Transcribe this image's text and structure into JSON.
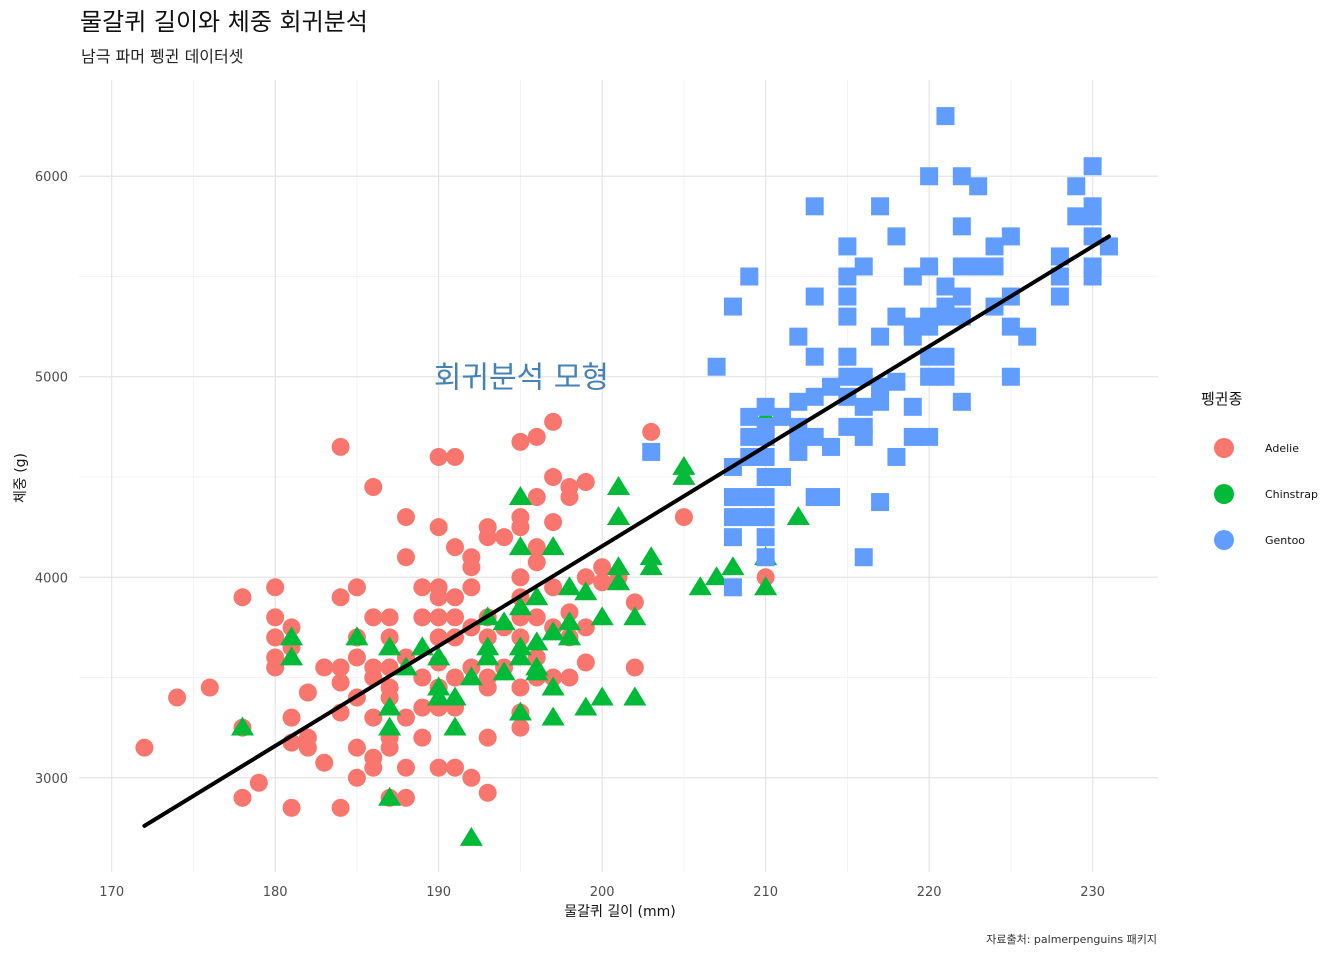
{
  "colors": {
    "Adelie": "#F8766D",
    "Chinstrap": "#00BA38",
    "Gentoo": "#619CFF",
    "regression_line": "#000000",
    "annotation": "#4682B4"
  },
  "chart_data": {
    "type": "scatter",
    "title": "물갈퀴 길이와 체중 회귀분석",
    "subtitle": "남극 파머 펭귄 데이터셋",
    "xlabel": "물갈퀴 길이 (mm)",
    "ylabel": "체중 (g)",
    "xlim": [
      168,
      234
    ],
    "ylim": [
      2530,
      6480
    ],
    "x_ticks": [
      170,
      180,
      190,
      200,
      210,
      220,
      230
    ],
    "y_ticks": [
      3000,
      4000,
      5000,
      6000
    ],
    "grid": true,
    "legend": {
      "title": "펭귄종",
      "position": "right",
      "entries": [
        "Adelie",
        "Chinstrap",
        "Gentoo"
      ]
    },
    "annotation": {
      "text": "회귀분석 모형",
      "x": 195,
      "y": 5000
    },
    "caption": "자료출처: palmerpenguins 패키지",
    "regression": {
      "label": "",
      "x": [
        172,
        231
      ],
      "y": [
        2760,
        5700
      ]
    },
    "series": [
      {
        "name": "Adelie",
        "shape": "circle",
        "points": [
          [
            172,
            3150
          ],
          [
            174,
            3400
          ],
          [
            176,
            3450
          ],
          [
            178,
            3900
          ],
          [
            178,
            3250
          ],
          [
            178,
            2900
          ],
          [
            179,
            2975
          ],
          [
            180,
            3950
          ],
          [
            180,
            3800
          ],
          [
            180,
            3700
          ],
          [
            180,
            3600
          ],
          [
            180,
            3550
          ],
          [
            181,
            3750
          ],
          [
            181,
            3650
          ],
          [
            181,
            3300
          ],
          [
            181,
            3175
          ],
          [
            181,
            2850
          ],
          [
            182,
            3425
          ],
          [
            182,
            3200
          ],
          [
            182,
            3150
          ],
          [
            183,
            3550
          ],
          [
            183,
            3075
          ],
          [
            184,
            4650
          ],
          [
            184,
            3900
          ],
          [
            184,
            3550
          ],
          [
            184,
            3475
          ],
          [
            184,
            3325
          ],
          [
            184,
            2850
          ],
          [
            185,
            3950
          ],
          [
            185,
            3700
          ],
          [
            185,
            3600
          ],
          [
            185,
            3400
          ],
          [
            185,
            3150
          ],
          [
            185,
            3000
          ],
          [
            186,
            4450
          ],
          [
            186,
            3800
          ],
          [
            186,
            3550
          ],
          [
            186,
            3500
          ],
          [
            186,
            3300
          ],
          [
            186,
            3100
          ],
          [
            186,
            3050
          ],
          [
            187,
            3800
          ],
          [
            187,
            3700
          ],
          [
            187,
            3550
          ],
          [
            187,
            3450
          ],
          [
            187,
            3400
          ],
          [
            187,
            3200
          ],
          [
            187,
            3150
          ],
          [
            187,
            2900
          ],
          [
            188,
            4300
          ],
          [
            188,
            4100
          ],
          [
            188,
            3600
          ],
          [
            188,
            3300
          ],
          [
            188,
            3050
          ],
          [
            188,
            2900
          ],
          [
            189,
            3950
          ],
          [
            189,
            3800
          ],
          [
            189,
            3500
          ],
          [
            189,
            3350
          ],
          [
            189,
            3200
          ],
          [
            190,
            4600
          ],
          [
            190,
            4250
          ],
          [
            190,
            3950
          ],
          [
            190,
            3900
          ],
          [
            190,
            3800
          ],
          [
            190,
            3700
          ],
          [
            190,
            3575
          ],
          [
            190,
            3450
          ],
          [
            190,
            3350
          ],
          [
            190,
            3050
          ],
          [
            191,
            4600
          ],
          [
            191,
            4150
          ],
          [
            191,
            3900
          ],
          [
            191,
            3800
          ],
          [
            191,
            3700
          ],
          [
            191,
            3500
          ],
          [
            191,
            3350
          ],
          [
            191,
            3050
          ],
          [
            192,
            4100
          ],
          [
            192,
            4050
          ],
          [
            192,
            3950
          ],
          [
            192,
            3750
          ],
          [
            192,
            3550
          ],
          [
            192,
            3000
          ],
          [
            193,
            4250
          ],
          [
            193,
            4200
          ],
          [
            193,
            3800
          ],
          [
            193,
            3700
          ],
          [
            193,
            3500
          ],
          [
            193,
            3450
          ],
          [
            193,
            3200
          ],
          [
            193,
            2925
          ],
          [
            194,
            4200
          ],
          [
            194,
            3750
          ],
          [
            194,
            3550
          ],
          [
            195,
            4675
          ],
          [
            195,
            4300
          ],
          [
            195,
            4250
          ],
          [
            195,
            4000
          ],
          [
            195,
            3900
          ],
          [
            195,
            3800
          ],
          [
            195,
            3700
          ],
          [
            195,
            3450
          ],
          [
            195,
            3325
          ],
          [
            195,
            3250
          ],
          [
            196,
            4700
          ],
          [
            196,
            4400
          ],
          [
            196,
            4150
          ],
          [
            196,
            4075
          ],
          [
            196,
            3800
          ],
          [
            196,
            3600
          ],
          [
            196,
            3500
          ],
          [
            197,
            4775
          ],
          [
            197,
            4500
          ],
          [
            197,
            4275
          ],
          [
            197,
            3950
          ],
          [
            197,
            3750
          ],
          [
            197,
            3500
          ],
          [
            198,
            4450
          ],
          [
            198,
            4400
          ],
          [
            198,
            3825
          ],
          [
            198,
            3700
          ],
          [
            198,
            3500
          ],
          [
            199,
            4475
          ],
          [
            199,
            4000
          ],
          [
            199,
            3750
          ],
          [
            199,
            3575
          ],
          [
            200,
            4050
          ],
          [
            200,
            3975
          ],
          [
            201,
            4000
          ],
          [
            202,
            3875
          ],
          [
            202,
            3550
          ],
          [
            203,
            4725
          ],
          [
            205,
            4300
          ],
          [
            210,
            4000
          ]
        ]
      },
      {
        "name": "Chinstrap",
        "shape": "triangle",
        "points": [
          [
            178,
            3250
          ],
          [
            181,
            3700
          ],
          [
            181,
            3600
          ],
          [
            185,
            3700
          ],
          [
            187,
            3650
          ],
          [
            187,
            3350
          ],
          [
            187,
            3250
          ],
          [
            187,
            2900
          ],
          [
            188,
            3550
          ],
          [
            189,
            3650
          ],
          [
            190,
            3600
          ],
          [
            190,
            3450
          ],
          [
            190,
            3400
          ],
          [
            191,
            3400
          ],
          [
            191,
            3250
          ],
          [
            192,
            3500
          ],
          [
            192,
            2700
          ],
          [
            193,
            3800
          ],
          [
            193,
            3650
          ],
          [
            193,
            3600
          ],
          [
            194,
            3775
          ],
          [
            194,
            3525
          ],
          [
            195,
            4400
          ],
          [
            195,
            4150
          ],
          [
            195,
            3850
          ],
          [
            195,
            3650
          ],
          [
            195,
            3600
          ],
          [
            195,
            3325
          ],
          [
            196,
            3900
          ],
          [
            196,
            3675
          ],
          [
            196,
            3550
          ],
          [
            196,
            3525
          ],
          [
            197,
            4150
          ],
          [
            197,
            3725
          ],
          [
            197,
            3450
          ],
          [
            197,
            3300
          ],
          [
            198,
            3950
          ],
          [
            198,
            3775
          ],
          [
            198,
            3700
          ],
          [
            199,
            3925
          ],
          [
            199,
            3350
          ],
          [
            200,
            3800
          ],
          [
            200,
            3400
          ],
          [
            201,
            4450
          ],
          [
            201,
            4300
          ],
          [
            201,
            4050
          ],
          [
            201,
            3975
          ],
          [
            202,
            3800
          ],
          [
            202,
            3400
          ],
          [
            203,
            4100
          ],
          [
            203,
            4050
          ],
          [
            205,
            4550
          ],
          [
            205,
            4500
          ],
          [
            206,
            3950
          ],
          [
            207,
            4000
          ],
          [
            208,
            4050
          ],
          [
            210,
            4800
          ],
          [
            210,
            4100
          ],
          [
            210,
            3950
          ],
          [
            212,
            4300
          ]
        ]
      },
      {
        "name": "Gentoo",
        "shape": "square",
        "points": [
          [
            203,
            4625
          ],
          [
            207,
            5050
          ],
          [
            208,
            5350
          ],
          [
            208,
            4550
          ],
          [
            208,
            4400
          ],
          [
            208,
            4300
          ],
          [
            208,
            4200
          ],
          [
            208,
            3950
          ],
          [
            209,
            5500
          ],
          [
            209,
            4800
          ],
          [
            209,
            4700
          ],
          [
            209,
            4600
          ],
          [
            209,
            4400
          ],
          [
            209,
            4300
          ],
          [
            210,
            4850
          ],
          [
            210,
            4750
          ],
          [
            210,
            4700
          ],
          [
            210,
            4600
          ],
          [
            210,
            4500
          ],
          [
            210,
            4400
          ],
          [
            210,
            4300
          ],
          [
            210,
            4200
          ],
          [
            210,
            4100
          ],
          [
            211,
            4500
          ],
          [
            211,
            4800
          ],
          [
            212,
            5200
          ],
          [
            212,
            4875
          ],
          [
            212,
            4750
          ],
          [
            212,
            4700
          ],
          [
            212,
            4625
          ],
          [
            213,
            5850
          ],
          [
            213,
            5400
          ],
          [
            213,
            5100
          ],
          [
            213,
            4900
          ],
          [
            213,
            4700
          ],
          [
            213,
            4400
          ],
          [
            214,
            4950
          ],
          [
            214,
            4650
          ],
          [
            214,
            4400
          ],
          [
            215,
            5650
          ],
          [
            215,
            5500
          ],
          [
            215,
            5400
          ],
          [
            215,
            5300
          ],
          [
            215,
            5100
          ],
          [
            215,
            5000
          ],
          [
            215,
            4900
          ],
          [
            215,
            4750
          ],
          [
            216,
            5550
          ],
          [
            216,
            5000
          ],
          [
            216,
            4850
          ],
          [
            216,
            4750
          ],
          [
            216,
            4700
          ],
          [
            216,
            4100
          ],
          [
            217,
            5850
          ],
          [
            217,
            5200
          ],
          [
            217,
            4950
          ],
          [
            217,
            4875
          ],
          [
            217,
            4375
          ],
          [
            218,
            5700
          ],
          [
            218,
            5300
          ],
          [
            218,
            4975
          ],
          [
            218,
            4600
          ],
          [
            219,
            5500
          ],
          [
            219,
            5250
          ],
          [
            219,
            5200
          ],
          [
            219,
            4850
          ],
          [
            219,
            4700
          ],
          [
            220,
            6000
          ],
          [
            220,
            5550
          ],
          [
            220,
            5300
          ],
          [
            220,
            5250
          ],
          [
            220,
            5100
          ],
          [
            220,
            5000
          ],
          [
            220,
            4700
          ],
          [
            221,
            6300
          ],
          [
            221,
            5450
          ],
          [
            221,
            5350
          ],
          [
            221,
            5300
          ],
          [
            221,
            5100
          ],
          [
            221,
            5000
          ],
          [
            222,
            6000
          ],
          [
            222,
            5750
          ],
          [
            222,
            5550
          ],
          [
            222,
            5400
          ],
          [
            222,
            5300
          ],
          [
            222,
            4875
          ],
          [
            223,
            5950
          ],
          [
            223,
            5550
          ],
          [
            224,
            5650
          ],
          [
            224,
            5550
          ],
          [
            224,
            5350
          ],
          [
            225,
            5700
          ],
          [
            225,
            5400
          ],
          [
            225,
            5250
          ],
          [
            225,
            5000
          ],
          [
            226,
            5200
          ],
          [
            228,
            5600
          ],
          [
            228,
            5500
          ],
          [
            228,
            5400
          ],
          [
            229,
            5950
          ],
          [
            229,
            5800
          ],
          [
            230,
            6050
          ],
          [
            230,
            5850
          ],
          [
            230,
            5800
          ],
          [
            230,
            5700
          ],
          [
            230,
            5550
          ],
          [
            230,
            5500
          ],
          [
            231,
            5650
          ]
        ]
      }
    ]
  }
}
